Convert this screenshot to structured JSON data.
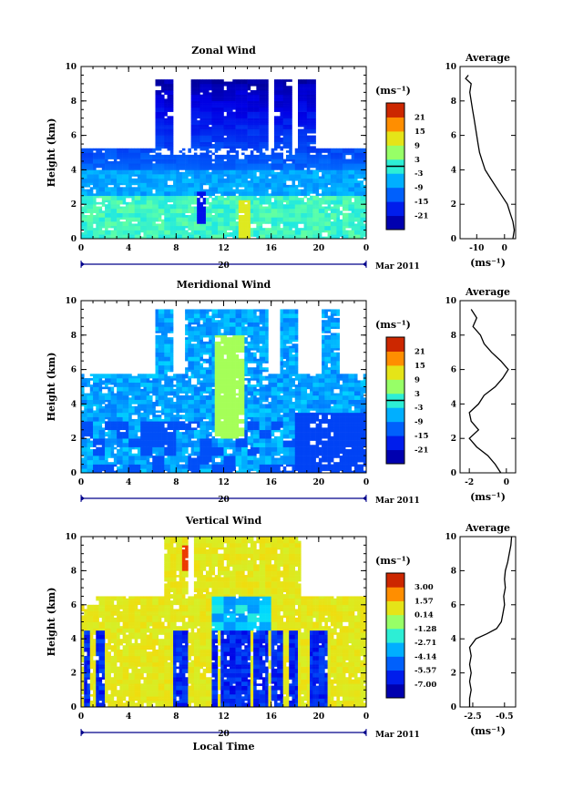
{
  "figure": {
    "xlabel_bottom": "Local Time",
    "date_label": "Mar 2011",
    "day_label": "20"
  },
  "chart_data": [
    {
      "type": "heatmap",
      "title": "Zonal Wind",
      "ylabel": "Height (km)",
      "xlim": [
        0,
        24
      ],
      "ylim": [
        0,
        10
      ],
      "xticks": [
        "0",
        "4",
        "8",
        "12",
        "16",
        "20",
        "0"
      ],
      "yticks": [
        "0",
        "2",
        "4",
        "6",
        "8",
        "10"
      ],
      "colorbar": {
        "unit_label": "(ms⁻¹)",
        "ticks": [
          "21",
          "15",
          "9",
          "3",
          "-3",
          "-9",
          "-15",
          "-21"
        ],
        "range": [
          -24,
          24
        ]
      },
      "profile": {
        "title": "Average",
        "xlabel": "(ms⁻¹)",
        "xlim": [
          -16,
          4
        ],
        "xticks": [
          "-10",
          "0"
        ],
        "yticks": [
          "0",
          "2",
          "4",
          "6",
          "8",
          "10"
        ],
        "heights": [
          0,
          0.5,
          1,
          1.5,
          2,
          2.5,
          3,
          3.5,
          4,
          4.5,
          5,
          5.5,
          6,
          6.5,
          7,
          7.5,
          8,
          8.5,
          9,
          9.3,
          9.5
        ],
        "values": [
          3,
          3.5,
          3,
          2,
          1,
          -1,
          -3,
          -5,
          -7,
          -8,
          -9,
          -9.5,
          -10,
          -10.5,
          -11,
          -11.5,
          -12,
          -12.5,
          -12,
          -14,
          -13
        ]
      }
    },
    {
      "type": "heatmap",
      "title": "Meridional Wind",
      "ylabel": "Height (km)",
      "xlim": [
        0,
        24
      ],
      "ylim": [
        0,
        10
      ],
      "xticks": [
        "0",
        "4",
        "8",
        "12",
        "16",
        "20",
        "0"
      ],
      "yticks": [
        "0",
        "2",
        "4",
        "6",
        "8",
        "10"
      ],
      "colorbar": {
        "unit_label": "(ms⁻¹)",
        "ticks": [
          "21",
          "15",
          "9",
          "3",
          "-3",
          "-9",
          "-15",
          "-21"
        ],
        "range": [
          -24,
          24
        ]
      },
      "profile": {
        "title": "Average",
        "xlabel": "(ms⁻¹)",
        "xlim": [
          -2.5,
          0.5
        ],
        "xticks": [
          "-2",
          "0"
        ],
        "yticks": [
          "0",
          "2",
          "4",
          "6",
          "8",
          "10"
        ],
        "heights": [
          0,
          0.5,
          1,
          1.5,
          2,
          2.5,
          3,
          3.5,
          4,
          4.5,
          5,
          5.5,
          6,
          6.5,
          7,
          7.5,
          8,
          8.5,
          9,
          9.5
        ],
        "values": [
          -0.3,
          -0.6,
          -1.0,
          -1.6,
          -2.0,
          -1.5,
          -1.9,
          -2.0,
          -1.5,
          -1.2,
          -0.6,
          -0.2,
          0.1,
          -0.3,
          -0.8,
          -1.2,
          -1.4,
          -1.8,
          -1.6,
          -1.9
        ]
      }
    },
    {
      "type": "heatmap",
      "title": "Vertical Wind",
      "ylabel": "Height (km)",
      "xlim": [
        0,
        24
      ],
      "ylim": [
        0,
        10
      ],
      "xticks": [
        "0",
        "4",
        "8",
        "12",
        "16",
        "20",
        "0"
      ],
      "yticks": [
        "0",
        "2",
        "4",
        "6",
        "8",
        "10"
      ],
      "colorbar": {
        "unit_label": "(ms⁻¹)",
        "ticks": [
          "3.00",
          "1.57",
          "0.14",
          "-1.28",
          "-2.71",
          "-4.14",
          "-5.57",
          "-7.00"
        ],
        "range": [
          -8,
          4
        ]
      },
      "profile": {
        "title": "Average",
        "xlabel": "(ms⁻¹)",
        "xlim": [
          -3.3,
          0.2
        ],
        "xticks": [
          "-2.5",
          "-0.5"
        ],
        "yticks": [
          "0",
          "2",
          "4",
          "6",
          "8",
          "10"
        ],
        "heights": [
          0,
          0.5,
          1,
          1.5,
          2,
          2.5,
          3,
          3.5,
          4,
          4.3,
          4.6,
          5,
          5.5,
          6,
          6.5,
          7,
          7.5,
          8,
          8.5,
          9,
          9.5,
          10
        ],
        "values": [
          -2.7,
          -2.7,
          -2.6,
          -2.7,
          -2.6,
          -2.7,
          -2.6,
          -2.7,
          -2.3,
          -1.6,
          -1.0,
          -0.7,
          -0.6,
          -0.5,
          -0.55,
          -0.45,
          -0.5,
          -0.45,
          -0.3,
          -0.2,
          -0.1,
          -0.05
        ]
      }
    }
  ]
}
